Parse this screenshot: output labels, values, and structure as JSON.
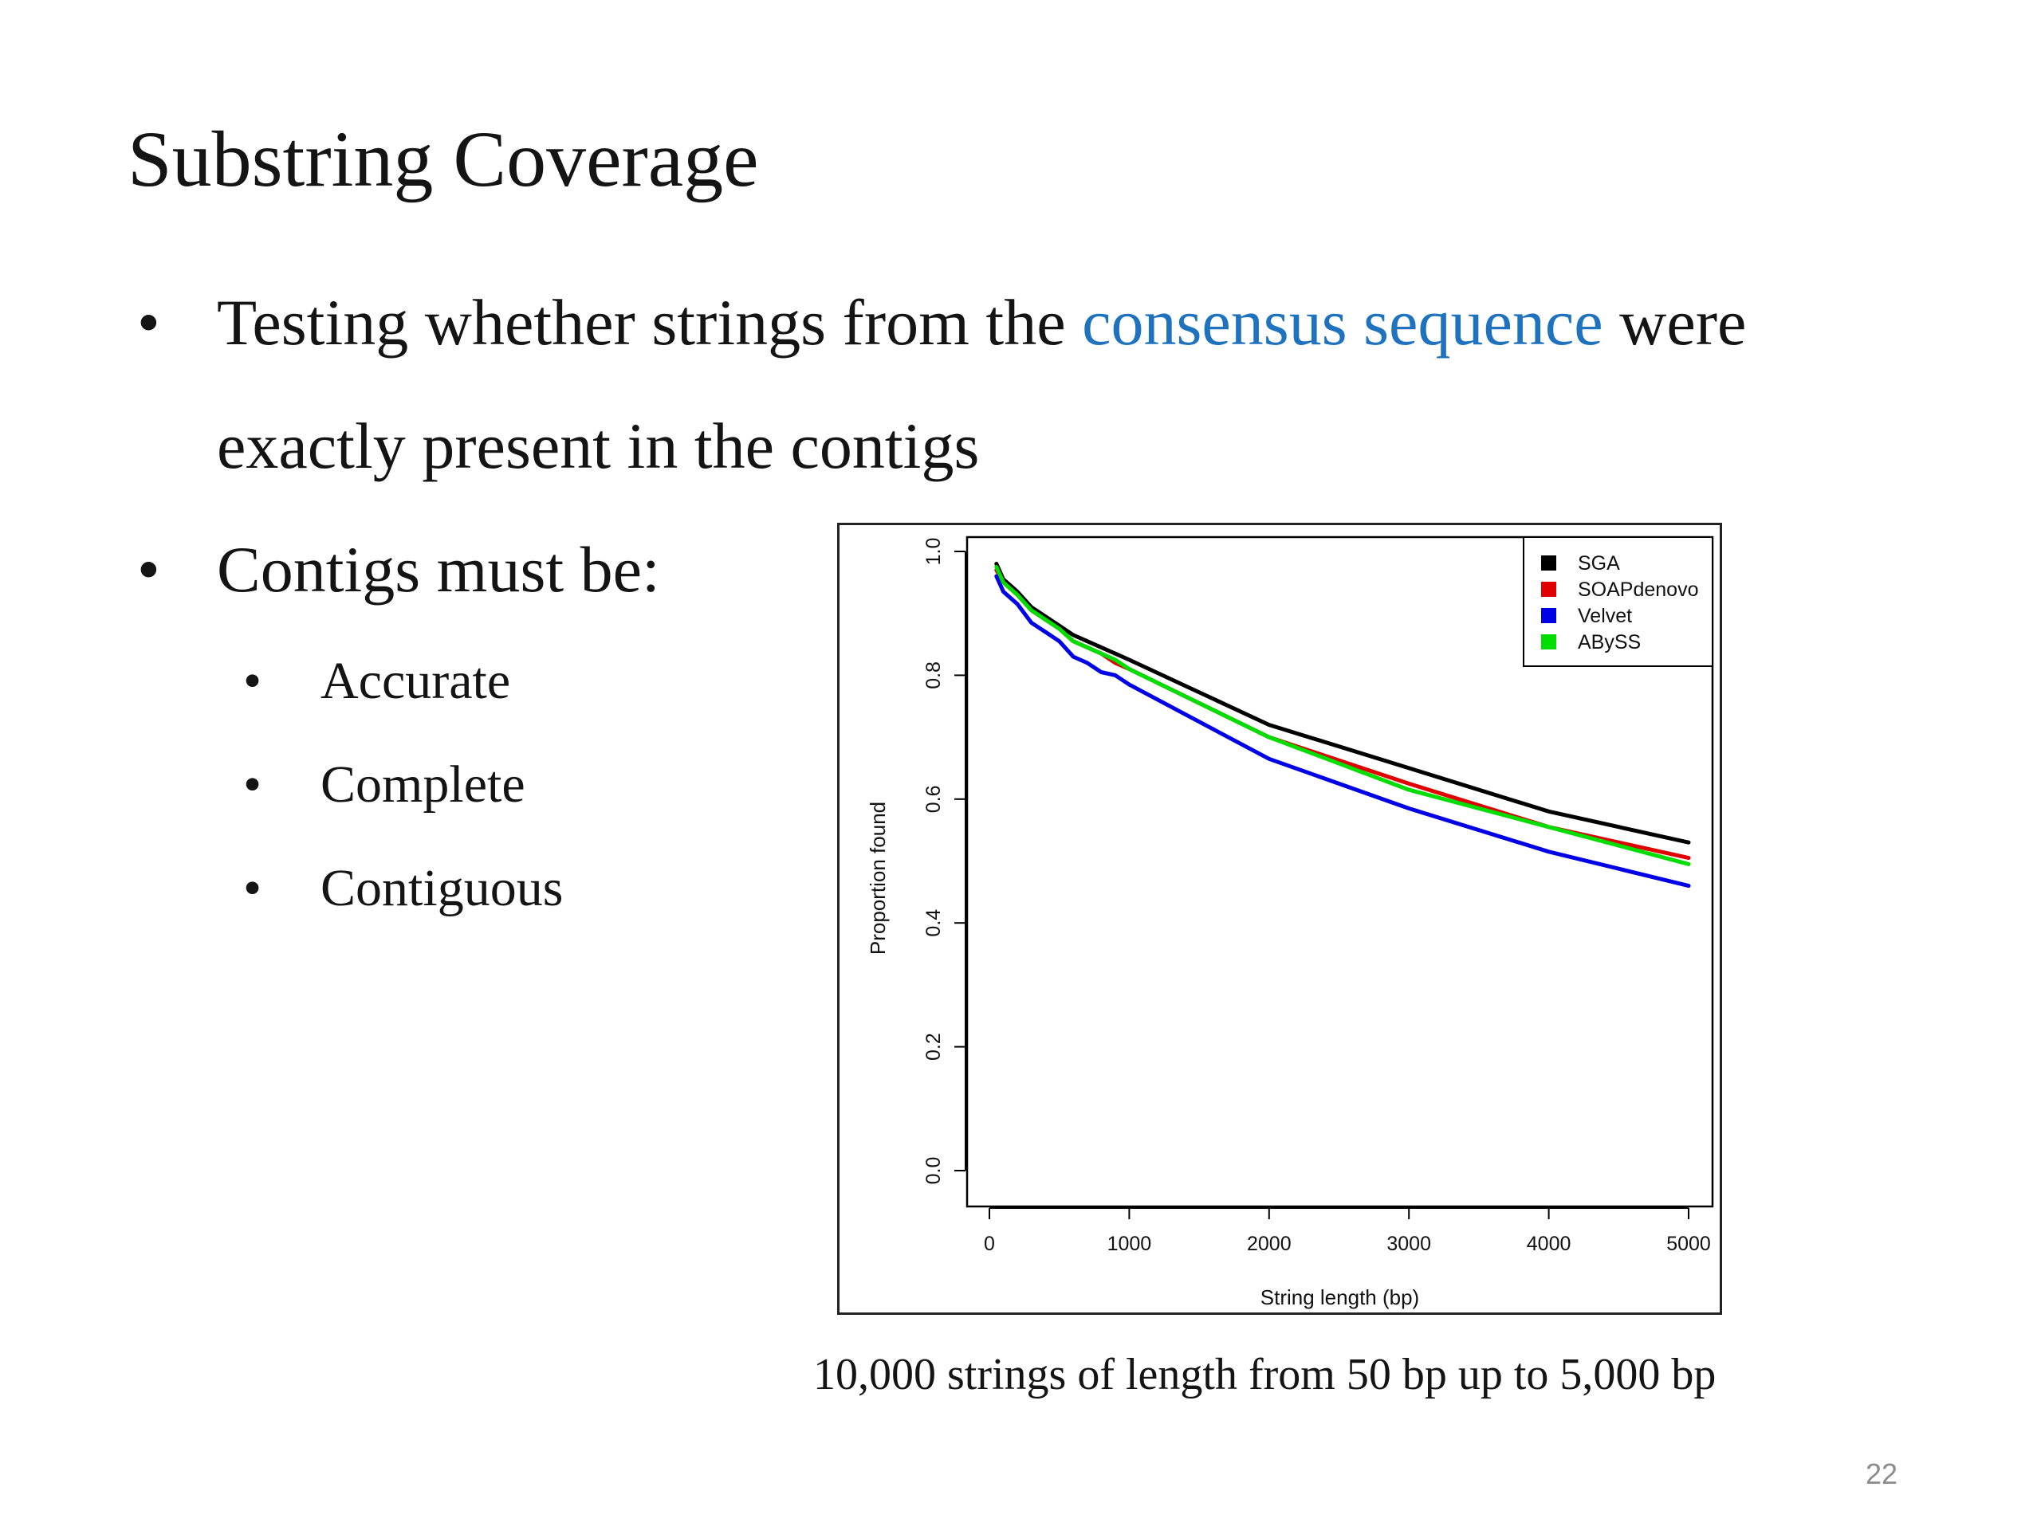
{
  "slide": {
    "title": "Substring Coverage",
    "page_number": "22",
    "bullets": {
      "b1_part1": "Testing whether strings from the ",
      "b1_link": "consensus sequence",
      "b1_part2": " were",
      "b1_line2": "exactly present in the contigs",
      "b2": "Contigs must be:",
      "sub": [
        "Accurate",
        "Complete",
        "Contiguous"
      ]
    },
    "bullet_glyph": "•",
    "caption": "10,000 strings of length from 50 bp up to 5,000 bp",
    "colors": {
      "text": "#141414",
      "link": "#1f73be",
      "page_number": "#8c8c8c"
    }
  },
  "chart_data": {
    "type": "line",
    "xlabel": "String length (bp)",
    "ylabel": "Proportion found",
    "xlim": [
      0,
      5000
    ],
    "ylim": [
      0.0,
      1.0
    ],
    "xticks": [
      0,
      1000,
      2000,
      3000,
      4000,
      5000
    ],
    "xtick_labels": [
      "0",
      "1000",
      "2000",
      "3000",
      "4000",
      "5000"
    ],
    "yticks": [
      0.0,
      0.2,
      0.4,
      0.6,
      0.8,
      1.0
    ],
    "ytick_labels": [
      "0.0",
      "0.2",
      "0.4",
      "0.6",
      "0.8",
      "1.0"
    ],
    "grid": false,
    "legend_position": "top-right",
    "series": [
      {
        "name": "SGA",
        "color": "#000000",
        "x": [
          50,
          100,
          200,
          300,
          400,
          500,
          600,
          700,
          800,
          900,
          1000,
          2000,
          3000,
          4000,
          5000
        ],
        "y": [
          0.98,
          0.955,
          0.935,
          0.91,
          0.895,
          0.88,
          0.865,
          0.855,
          0.845,
          0.835,
          0.825,
          0.72,
          0.65,
          0.58,
          0.53
        ]
      },
      {
        "name": "SOAPdenovo",
        "color": "#e00000",
        "x": [
          50,
          100,
          200,
          300,
          400,
          500,
          600,
          700,
          800,
          900,
          1000,
          2000,
          3000,
          4000,
          5000
        ],
        "y": [
          0.97,
          0.95,
          0.93,
          0.905,
          0.89,
          0.875,
          0.855,
          0.845,
          0.835,
          0.82,
          0.81,
          0.7,
          0.625,
          0.555,
          0.505
        ]
      },
      {
        "name": "Velvet",
        "color": "#0000e6",
        "x": [
          50,
          100,
          200,
          300,
          400,
          500,
          600,
          700,
          800,
          900,
          1000,
          2000,
          3000,
          4000,
          5000
        ],
        "y": [
          0.96,
          0.935,
          0.915,
          0.885,
          0.87,
          0.855,
          0.83,
          0.82,
          0.805,
          0.8,
          0.785,
          0.665,
          0.585,
          0.515,
          0.46
        ]
      },
      {
        "name": "ABySS",
        "color": "#00dd00",
        "x": [
          50,
          100,
          200,
          300,
          400,
          500,
          600,
          700,
          800,
          900,
          1000,
          2000,
          3000,
          4000,
          5000
        ],
        "y": [
          0.975,
          0.95,
          0.93,
          0.905,
          0.89,
          0.875,
          0.855,
          0.845,
          0.835,
          0.825,
          0.81,
          0.7,
          0.615,
          0.555,
          0.495
        ]
      }
    ]
  }
}
